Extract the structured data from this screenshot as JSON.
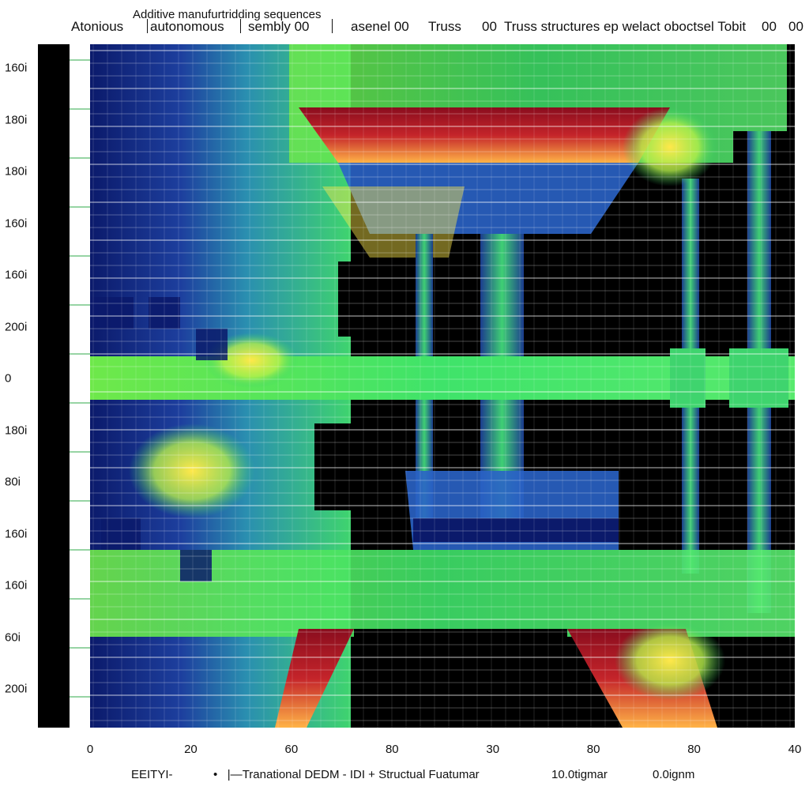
{
  "chart_data": {
    "type": "heatmap",
    "title": "Additive manufurtridding sequences",
    "header_labels": [
      "Atonious",
      "autonomous",
      "sembly 00",
      "asenel 00",
      "Truss",
      "00",
      "Truss structures ep welact oboctsel Tobit",
      "00",
      "00"
    ],
    "y_ticks": [
      "160i",
      "180i",
      "180i",
      "160i",
      "160i",
      "200i",
      "0",
      "180i",
      "80i",
      "160i",
      "160i",
      "60i",
      "200i"
    ],
    "x_ticks": [
      "0",
      "20",
      "60",
      "80",
      "30",
      "80",
      "80",
      "40"
    ],
    "footer": [
      "EEITYI-",
      "Tranational DEDM - IDI + Structual Fuatumar",
      "10.0tigmar",
      "0.0ignm"
    ],
    "colorscale": [
      "#0b1a6b",
      "#2a63c6",
      "#2fd16b",
      "#b6f04a",
      "#ffe84a",
      "#c4242a"
    ],
    "grid": true
  }
}
